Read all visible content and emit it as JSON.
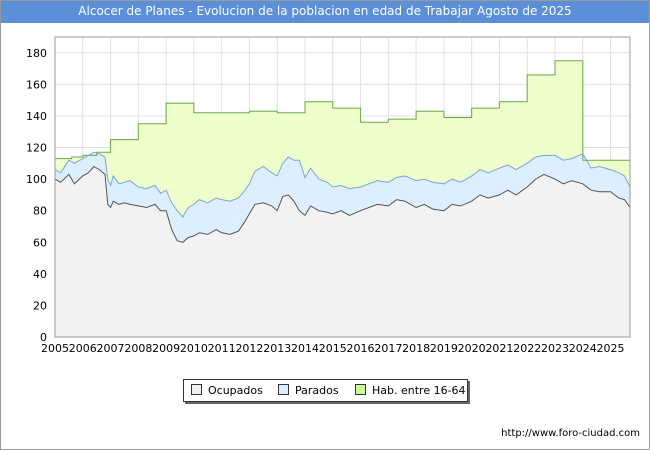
{
  "chart_data": {
    "type": "area",
    "title": "Alcocer de Planes - Evolucion de la poblacion en edad de Trabajar Agosto de 2025",
    "xlabel": "",
    "ylabel": "",
    "xlim": [
      2005,
      2025.7
    ],
    "ylim": [
      0,
      190
    ],
    "yticks": [
      0,
      20,
      40,
      60,
      80,
      100,
      120,
      140,
      160,
      180
    ],
    "xticks": [
      "2005",
      "2006",
      "2007",
      "2008",
      "2009",
      "2010",
      "2011",
      "2012",
      "2013",
      "2014",
      "2015",
      "2016",
      "2017",
      "2018",
      "2019",
      "2020",
      "2021",
      "2022",
      "2023",
      "2024",
      "2025"
    ],
    "grid": true,
    "legend_position": "bottom",
    "colors": {
      "ocupados": "#f2f2f2",
      "parados": "#ddeeff",
      "hab": "#eeffcc",
      "hab_line": "#66aa44",
      "line": "#555555"
    },
    "series": [
      {
        "name": "Hab. entre 16-64",
        "step": true,
        "x": [
          2005,
          2005.6,
          2006,
          2006.5,
          2007,
          2008,
          2009,
          2010,
          2011,
          2012,
          2013,
          2014,
          2015,
          2016,
          2017,
          2018,
          2019,
          2020,
          2021,
          2022,
          2023,
          2023.95,
          2024,
          2025,
          2025.7
        ],
        "values": [
          113,
          114,
          115,
          117,
          125,
          135,
          148,
          142,
          142,
          143,
          142,
          149,
          145,
          136,
          138,
          143,
          139,
          145,
          149,
          166,
          175,
          175,
          112,
          112,
          112
        ]
      },
      {
        "name": "Parados",
        "x": [
          2005,
          2005.2,
          2005.5,
          2005.7,
          2006,
          2006.2,
          2006.4,
          2006.6,
          2006.8,
          2006.9,
          2007,
          2007.1,
          2007.3,
          2007.5,
          2007.7,
          2008,
          2008.3,
          2008.6,
          2008.8,
          2009,
          2009.2,
          2009.4,
          2009.6,
          2009.8,
          2010,
          2010.2,
          2010.5,
          2010.8,
          2011,
          2011.3,
          2011.6,
          2011.8,
          2012,
          2012.2,
          2012.5,
          2012.8,
          2013,
          2013.2,
          2013.4,
          2013.6,
          2013.8,
          2014,
          2014.2,
          2014.5,
          2014.8,
          2015,
          2015.3,
          2015.6,
          2016,
          2016.3,
          2016.6,
          2017,
          2017.3,
          2017.6,
          2018,
          2018.3,
          2018.6,
          2019,
          2019.3,
          2019.6,
          2020,
          2020.3,
          2020.6,
          2021,
          2021.3,
          2021.6,
          2022,
          2022.3,
          2022.6,
          2023,
          2023.3,
          2023.6,
          2024,
          2024.3,
          2024.6,
          2025,
          2025.3,
          2025.5,
          2025.7
        ],
        "values": [
          106,
          104,
          112,
          110,
          113,
          115,
          117,
          116,
          114,
          100,
          96,
          102,
          97,
          98,
          99,
          95,
          94,
          96,
          91,
          93,
          85,
          80,
          76,
          82,
          84,
          87,
          85,
          88,
          87,
          86,
          88,
          92,
          97,
          105,
          108,
          104,
          102,
          110,
          114,
          112,
          112,
          101,
          107,
          100,
          98,
          95,
          96,
          94,
          95,
          97,
          99,
          98,
          101,
          102,
          99,
          100,
          98,
          97,
          100,
          98,
          102,
          106,
          104,
          107,
          109,
          106,
          110,
          114,
          115,
          115,
          112,
          113,
          116,
          107,
          108,
          106,
          104,
          102,
          95
        ]
      },
      {
        "name": "Ocupados",
        "x": [
          2005,
          2005.2,
          2005.5,
          2005.7,
          2006,
          2006.2,
          2006.4,
          2006.6,
          2006.8,
          2006.9,
          2007,
          2007.1,
          2007.3,
          2007.5,
          2007.7,
          2008,
          2008.3,
          2008.6,
          2008.8,
          2009,
          2009.2,
          2009.4,
          2009.6,
          2009.8,
          2010,
          2010.2,
          2010.5,
          2010.8,
          2011,
          2011.3,
          2011.6,
          2011.8,
          2012,
          2012.2,
          2012.5,
          2012.8,
          2013,
          2013.2,
          2013.4,
          2013.6,
          2013.8,
          2014,
          2014.2,
          2014.5,
          2014.8,
          2015,
          2015.3,
          2015.6,
          2016,
          2016.3,
          2016.6,
          2017,
          2017.3,
          2017.6,
          2018,
          2018.3,
          2018.6,
          2019,
          2019.3,
          2019.6,
          2020,
          2020.3,
          2020.6,
          2021,
          2021.3,
          2021.6,
          2022,
          2022.3,
          2022.6,
          2023,
          2023.3,
          2023.6,
          2024,
          2024.3,
          2024.6,
          2025,
          2025.3,
          2025.5,
          2025.7
        ],
        "values": [
          100,
          98,
          103,
          97,
          102,
          104,
          108,
          106,
          103,
          84,
          82,
          86,
          84,
          85,
          84,
          83,
          82,
          84,
          80,
          80,
          68,
          61,
          60,
          63,
          64,
          66,
          65,
          68,
          66,
          65,
          67,
          72,
          78,
          84,
          85,
          83,
          80,
          89,
          90,
          86,
          80,
          77,
          83,
          80,
          79,
          78,
          80,
          77,
          80,
          82,
          84,
          83,
          87,
          86,
          82,
          84,
          81,
          80,
          84,
          83,
          86,
          90,
          88,
          90,
          93,
          90,
          95,
          100,
          103,
          100,
          97,
          99,
          97,
          93,
          92,
          92,
          88,
          87,
          82
        ]
      }
    ],
    "legend": [
      "Ocupados",
      "Parados",
      "Hab. entre 16-64"
    ],
    "source": "http://www.foro-ciudad.com"
  }
}
